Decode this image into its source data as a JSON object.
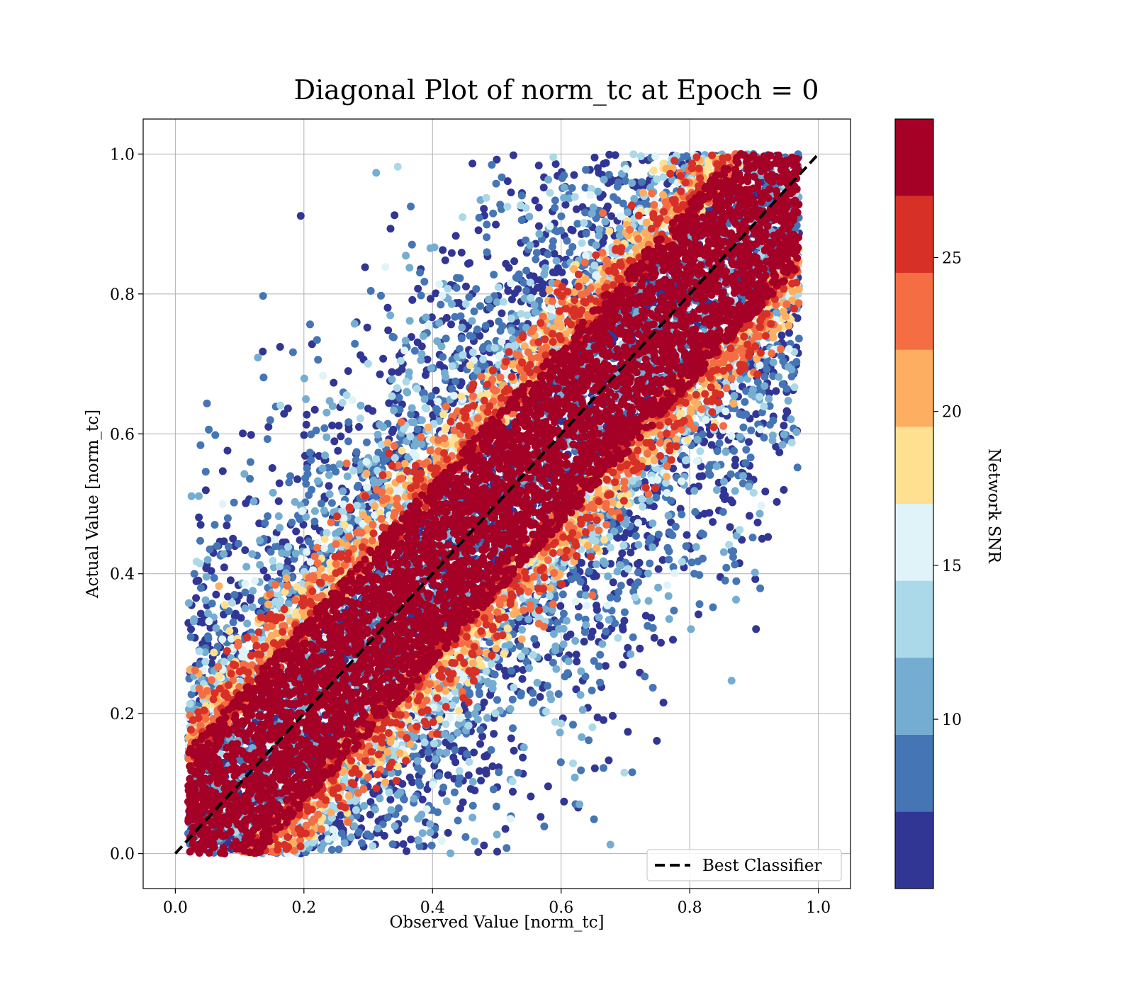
{
  "chart_data": {
    "type": "scatter",
    "title": "Diagonal Plot of norm_tc at Epoch = 0",
    "xlabel": "Observed Value [norm_tc]",
    "ylabel": "Actual Value [norm_tc]",
    "xlim": [
      -0.05,
      1.05
    ],
    "ylim": [
      -0.05,
      1.05
    ],
    "xticks": [
      "0.0",
      "0.2",
      "0.4",
      "0.6",
      "0.8",
      "1.0"
    ],
    "yticks": [
      "0.0",
      "0.2",
      "0.4",
      "0.6",
      "0.8",
      "1.0"
    ],
    "grid": true,
    "legend": {
      "position": "lower-right",
      "entries": [
        "Best Classifier"
      ]
    },
    "reference_line": {
      "name": "Best Classifier",
      "style": "dashed",
      "color": "#000000",
      "x": [
        0,
        1
      ],
      "y": [
        0,
        1
      ]
    },
    "colorbar": {
      "label": "Network SNR",
      "range": [
        4.5,
        29.5
      ],
      "boundaries": [
        4.5,
        7.0,
        9.5,
        12.0,
        14.5,
        17.0,
        19.5,
        22.0,
        24.5,
        27.0,
        29.5
      ],
      "ticks": [
        "10",
        "15",
        "20",
        "25"
      ],
      "tick_values": [
        10,
        15,
        20,
        25
      ],
      "colors": [
        "#313695",
        "#4575b4",
        "#74add1",
        "#abd9e9",
        "#e0f3f8",
        "#fee090",
        "#fdae61",
        "#f46d43",
        "#d73027",
        "#a50026"
      ]
    },
    "series_description_values": {
      "point_color_by": "Network SNR",
      "distribution": {
        "core_band_halfwidth": 0.13,
        "high_snr_value": 28,
        "scatter_extent": 0.55,
        "x_range_of_points": [
          0.02,
          0.97
        ],
        "y_range_of_points": [
          0.0,
          1.0
        ]
      }
    }
  }
}
